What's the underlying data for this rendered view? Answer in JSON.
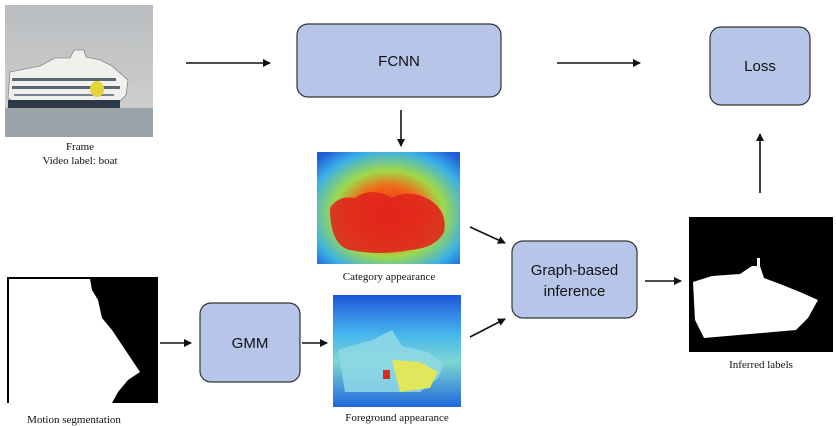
{
  "nodes": {
    "fcnn": "FCNN",
    "loss": "Loss",
    "gmm": "GMM",
    "graph_inference": [
      "Graph-based",
      "inference"
    ]
  },
  "captions": {
    "frame": "Frame",
    "video_label": "Video label: boat",
    "category_appearance": "Category appearance",
    "foreground_appearance": "Foreground appearance",
    "motion_segmentation": "Motion segmentation",
    "inferred_labels": "Inferred labels"
  },
  "colors": {
    "box_fill": "#b7c6e8",
    "box_stroke": "#333333",
    "arrow": "#111111"
  }
}
